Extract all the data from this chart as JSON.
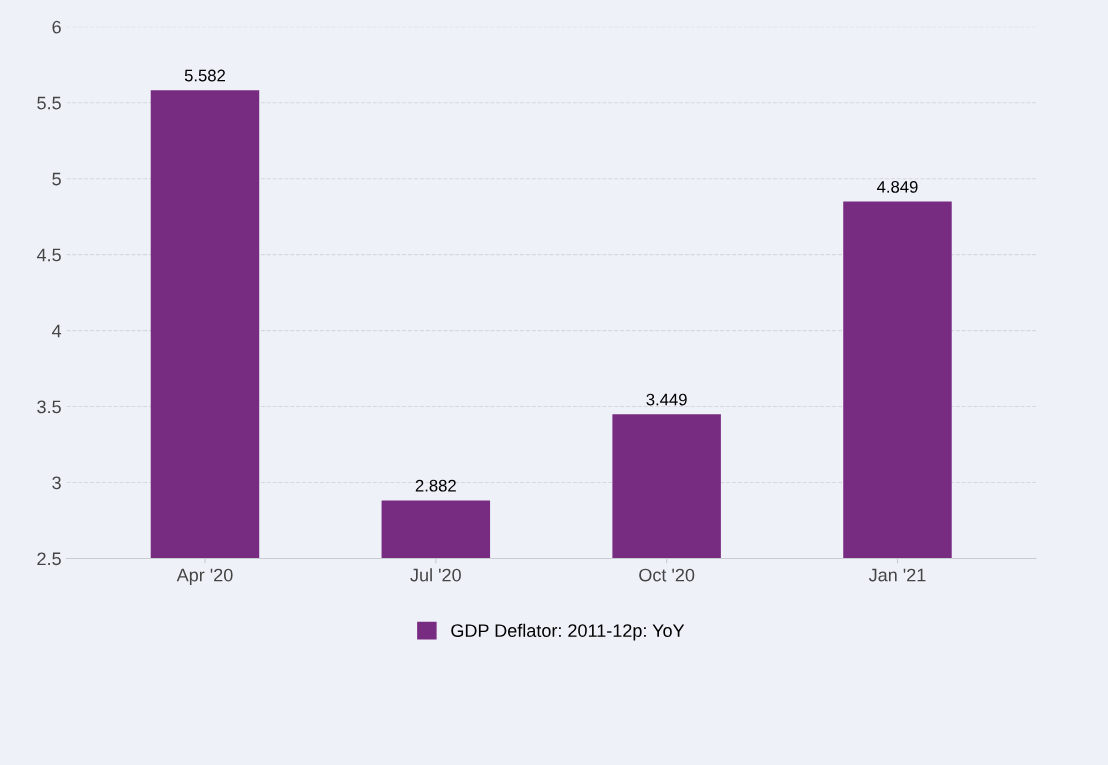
{
  "chart_data": {
    "type": "bar",
    "categories": [
      "Apr '20",
      "Jul '20",
      "Oct '20",
      "Jan '21"
    ],
    "series": [
      {
        "name": "GDP Deflator: 2011-12p: YoY",
        "color": "#772b81",
        "values": [
          5.582,
          2.882,
          3.449,
          4.849
        ]
      }
    ],
    "ylim": [
      2.5,
      6
    ],
    "yticks": [
      2.5,
      3,
      3.5,
      4,
      4.5,
      5,
      5.5,
      6
    ],
    "grid": "y",
    "legend": "bottom",
    "data_labels": true
  }
}
